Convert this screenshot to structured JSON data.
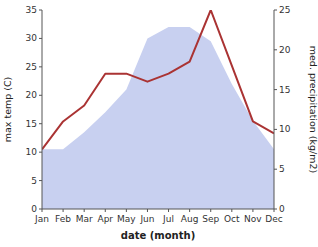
{
  "chart_data": {
    "type": "area",
    "categories": [
      "Jan",
      "Feb",
      "Mar",
      "Apr",
      "May",
      "Jun",
      "Jul",
      "Aug",
      "Sep",
      "Oct",
      "Nov",
      "Dec"
    ],
    "series": [
      {
        "type": "area",
        "color": "#c8d0f0",
        "values": [
          10.5,
          10.5,
          13.5,
          17,
          21,
          30,
          32,
          32,
          29.5,
          22,
          15.5,
          10.5
        ]
      },
      {
        "type": "line",
        "axis": "y2",
        "color": "#aa3333",
        "values": [
          7.5,
          11,
          13,
          17,
          17,
          16,
          17,
          18.5,
          25,
          18,
          11,
          9.5
        ]
      }
    ],
    "x_label": "date (month)",
    "y_label": "max temp (C)",
    "y2_label": "med. precipitation (kg/m2)",
    "ylim": [
      0,
      35
    ],
    "yticks": [
      0,
      5,
      10,
      15,
      20,
      25,
      30,
      35
    ],
    "y2lim": [
      0,
      25
    ],
    "y2ticks": [
      0,
      5,
      10,
      15,
      20,
      25
    ],
    "grid": false
  }
}
